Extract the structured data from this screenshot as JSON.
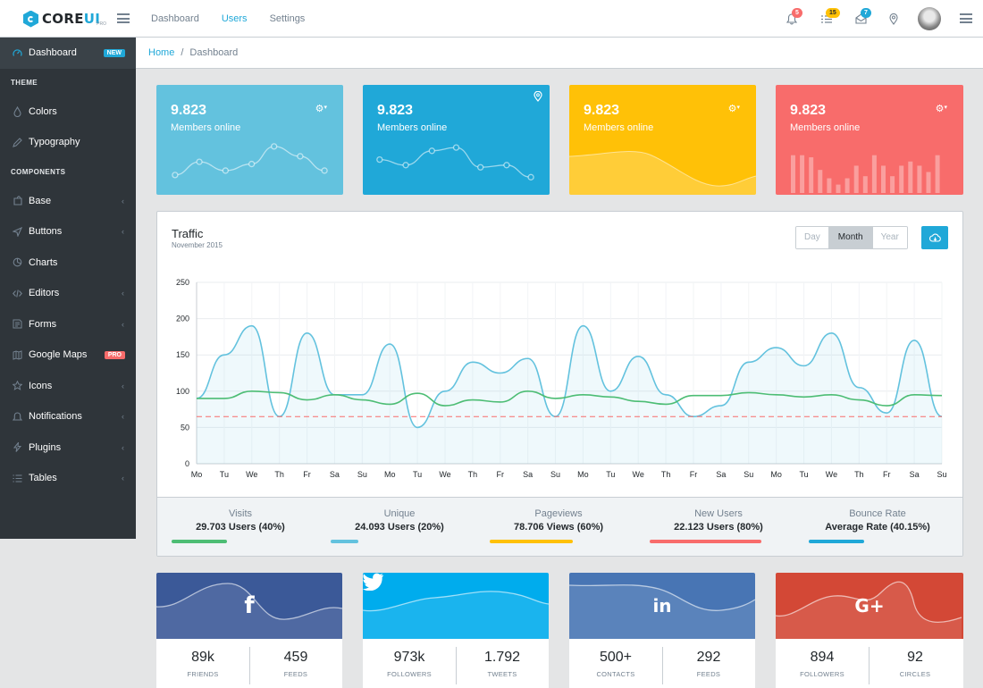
{
  "brand": {
    "name_a": "CORE",
    "name_b": "UI",
    "pro": "PRO"
  },
  "header_nav": [
    "Dashboard",
    "Users",
    "Settings"
  ],
  "header_badges": {
    "notifications": "5",
    "tasks": "15",
    "messages": "7"
  },
  "sidebar": {
    "dashboard": {
      "label": "Dashboard",
      "badge": "NEW"
    },
    "theme_title": "THEME",
    "colors": "Colors",
    "typography": "Typography",
    "components_title": "COMPONENTS",
    "items": [
      {
        "label": "Base",
        "icon": "puzzle-icon",
        "chevron": true
      },
      {
        "label": "Buttons",
        "icon": "cursor-icon",
        "chevron": true
      },
      {
        "label": "Charts",
        "icon": "pie-chart-icon",
        "chevron": false
      },
      {
        "label": "Editors",
        "icon": "code-icon",
        "chevron": true
      },
      {
        "label": "Forms",
        "icon": "note-icon",
        "chevron": true
      },
      {
        "label": "Google Maps",
        "icon": "map-icon",
        "chevron": false,
        "badge": "PRO"
      },
      {
        "label": "Icons",
        "icon": "star-icon",
        "chevron": true
      },
      {
        "label": "Notifications",
        "icon": "bell-icon",
        "chevron": true
      },
      {
        "label": "Plugins",
        "icon": "bolt-icon",
        "chevron": true
      },
      {
        "label": "Tables",
        "icon": "list-icon",
        "chevron": true
      }
    ]
  },
  "breadcrumb": {
    "home": "Home",
    "sep": "/",
    "current": "Dashboard"
  },
  "stats": [
    {
      "value": "9.823",
      "label": "Members online",
      "color": "#63c2de",
      "icon": "gear-dropdown-icon"
    },
    {
      "value": "9.823",
      "label": "Members online",
      "color": "#20a8d8",
      "icon": "location-pin-icon"
    },
    {
      "value": "9.823",
      "label": "Members online",
      "color": "#ffc107",
      "icon": "gear-dropdown-icon"
    },
    {
      "value": "9.823",
      "label": "Members online",
      "color": "#f86c6b",
      "icon": "gear-dropdown-icon"
    }
  ],
  "traffic": {
    "title": "Traffic",
    "subtitle": "November 2015",
    "periods": [
      "Day",
      "Month",
      "Year"
    ],
    "active_period": "Month"
  },
  "chart_data": {
    "type": "line",
    "categories": [
      "Mo",
      "Tu",
      "We",
      "Th",
      "Fr",
      "Sa",
      "Su",
      "Mo",
      "Tu",
      "We",
      "Th",
      "Fr",
      "Sa",
      "Su",
      "Mo",
      "Tu",
      "We",
      "Th",
      "Fr",
      "Sa",
      "Su",
      "Mo",
      "Tu",
      "We",
      "Th",
      "Fr",
      "Sa",
      "Su"
    ],
    "ylim": [
      0,
      250
    ],
    "yticks": [
      0,
      50,
      100,
      150,
      200,
      250
    ],
    "series": [
      {
        "values": [
          90,
          150,
          190,
          65,
          180,
          95,
          95,
          165,
          50,
          100,
          140,
          125,
          145,
          65,
          190,
          100,
          148,
          95,
          65,
          80,
          140,
          160,
          135,
          180,
          105,
          70,
          170,
          65
        ],
        "color": "#63c2de",
        "fill": true
      },
      {
        "values": [
          90,
          90,
          100,
          98,
          88,
          95,
          88,
          82,
          97,
          80,
          88,
          85,
          100,
          90,
          95,
          92,
          86,
          82,
          94,
          94,
          98,
          95,
          92,
          95,
          88,
          80,
          95,
          94
        ],
        "color": "#4dbd74",
        "fill": false
      },
      {
        "values": [
          65,
          65,
          65,
          65,
          65,
          65,
          65,
          65,
          65,
          65,
          65,
          65,
          65,
          65,
          65,
          65,
          65,
          65,
          65,
          65,
          65,
          65,
          65,
          65,
          65,
          65,
          65,
          65
        ],
        "color": "#f86c6b",
        "fill": false,
        "dashed": true
      }
    ],
    "grid": true
  },
  "metrics": [
    {
      "label": "Visits",
      "value": "29.703 Users (40%)",
      "color": "#4dbd74",
      "fraction": 0.4
    },
    {
      "label": "Unique",
      "value": "24.093 Users (20%)",
      "color": "#63c2de",
      "fraction": 0.2
    },
    {
      "label": "Pageviews",
      "value": "78.706 Views (60%)",
      "color": "#ffc107",
      "fraction": 0.6
    },
    {
      "label": "New Users",
      "value": "22.123 Users (80%)",
      "color": "#f86c6b",
      "fraction": 0.8
    },
    {
      "label": "Bounce Rate",
      "value": "Average Rate (40.15%)",
      "color": "#20a8d8",
      "fraction": 0.4015
    }
  ],
  "social": [
    {
      "icon": "facebook-icon",
      "glyph": "f",
      "color": "#3b5998",
      "a": "89k",
      "a_label": "FRIENDS",
      "b": "459",
      "b_label": "FEEDS"
    },
    {
      "icon": "twitter-icon",
      "glyph": "🐦",
      "color": "#00aced",
      "a": "973k",
      "a_label": "FOLLOWERS",
      "b": "1.792",
      "b_label": "TWEETS"
    },
    {
      "icon": "linkedin-icon",
      "glyph": "in",
      "color": "#4875b4",
      "a": "500+",
      "a_label": "CONTACTS",
      "b": "292",
      "b_label": "FEEDS"
    },
    {
      "icon": "google-plus-icon",
      "glyph": "G+",
      "color": "#d34836",
      "a": "894",
      "a_label": "FOLLOWERS",
      "b": "92",
      "b_label": "CIRCLES"
    }
  ]
}
